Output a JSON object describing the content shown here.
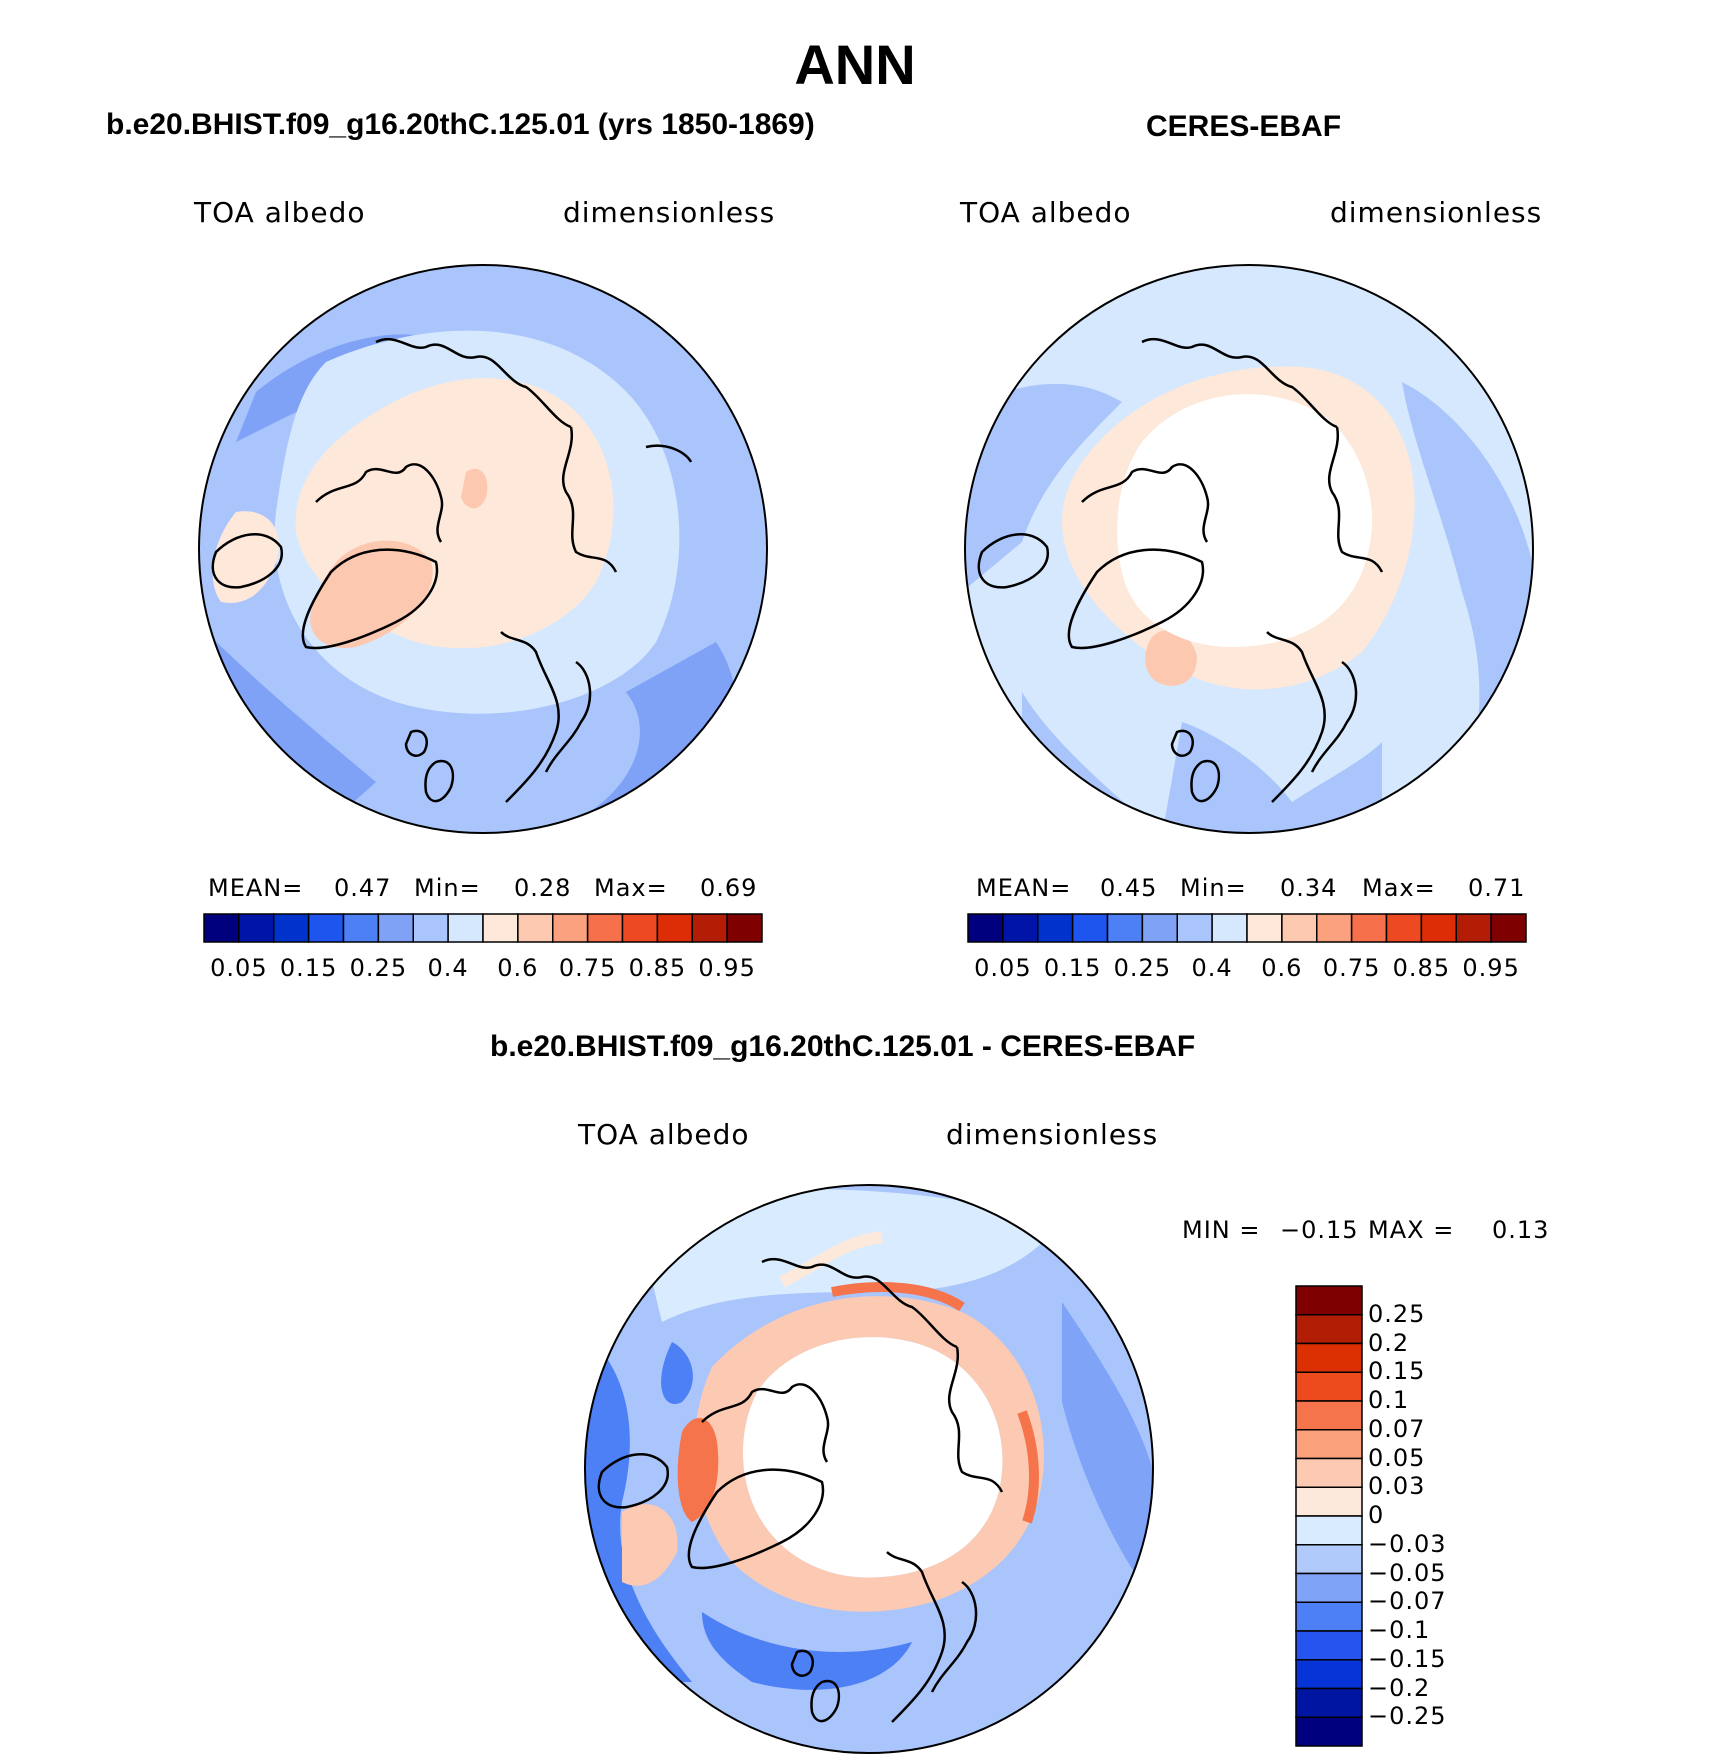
{
  "title": "ANN",
  "panels": [
    {
      "name": "model",
      "case_title": "b.e20.BHIST.f09_g16.20thC.125.01 (yrs 1850-1869)",
      "variable": "TOA albedo",
      "units": "dimensionless",
      "stats": {
        "mean_label": "MEAN=",
        "mean": "0.47",
        "min_label": "Min=",
        "min": "0.28",
        "max_label": "Max=",
        "max": "0.69"
      }
    },
    {
      "name": "obs",
      "case_title": "CERES-EBAF",
      "variable": "TOA albedo",
      "units": "dimensionless",
      "stats": {
        "mean_label": "MEAN=",
        "mean": "0.45",
        "min_label": "Min=",
        "min": "0.34",
        "max_label": "Max=",
        "max": "0.71"
      }
    },
    {
      "name": "diff",
      "case_title": "b.e20.BHIST.f09_g16.20thC.125.01 - CERES-EBAF",
      "variable": "TOA albedo",
      "units": "dimensionless",
      "stats": {
        "min_label": "MIN =",
        "min": "−0.15",
        "max_label": "MAX =",
        "max": "0.13"
      }
    }
  ],
  "colorbar_abs": {
    "colors": [
      "#00007e",
      "#0015a8",
      "#0033cc",
      "#1f55ef",
      "#4d7ff5",
      "#7fa2f7",
      "#a9c5fb",
      "#d6e8fd",
      "#fde8da",
      "#fcc8b0",
      "#fba17d",
      "#f6714b",
      "#ee4a22",
      "#dc2d06",
      "#b31d05",
      "#7e0000"
    ],
    "labels": [
      "0.05",
      "0.15",
      "0.25",
      "0.4",
      "0.6",
      "0.75",
      "0.85",
      "0.95"
    ]
  },
  "colorbar_diff": {
    "colors": [
      "#00007e",
      "#0016a3",
      "#0634d6",
      "#2555ee",
      "#4d7ff5",
      "#7fa3f7",
      "#b0cafb",
      "#d9ebfe",
      "#fde8dc",
      "#fccab2",
      "#fba17c",
      "#f6744c",
      "#ed4a1e",
      "#dc3002",
      "#b21e05",
      "#7e0000"
    ],
    "labels": [
      "0.25",
      "0.2",
      "0.15",
      "0.1",
      "0.07",
      "0.05",
      "0.03",
      "0",
      "−0.03",
      "−0.05",
      "−0.07",
      "−0.1",
      "−0.15",
      "−0.2",
      "−0.25"
    ]
  },
  "map_colors": {
    "ocean_blue": "#a9c5fb",
    "mid_blue": "#7fa2f7",
    "light_blue": "#d6e8fd",
    "peach": "#fde8da",
    "salmon": "#fcc8b0",
    "orange": "#f6714b",
    "deep_blue": "#4d7ff5",
    "missing": "#ffffff"
  }
}
